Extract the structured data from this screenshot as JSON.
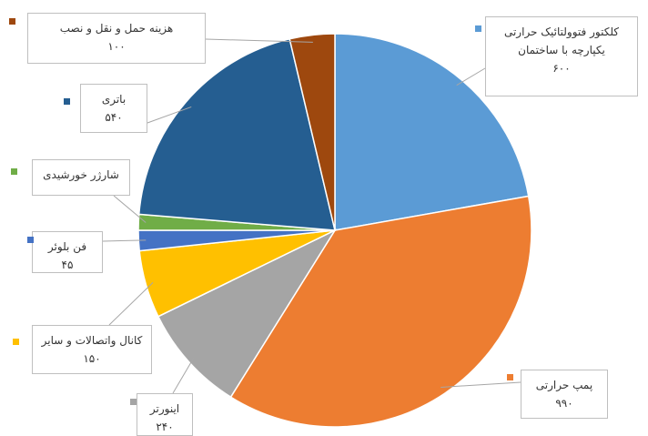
{
  "chart_data": {
    "type": "pie",
    "categories": [
      "کلکتور فتوولتائیک حرارتی یکپارچه با ساختمان",
      "پمپ حرارتی",
      "اینورتر",
      "کانال واتصالات و سایر",
      "فن بلوئر",
      "شارژر خورشیدی",
      "باتری",
      "هزینه حمل و نقل و نصب"
    ],
    "values": [
      600,
      990,
      240,
      150,
      45,
      35,
      540,
      100
    ],
    "value_labels": [
      "۶۰۰",
      "۹۹۰",
      "۲۴۰",
      "۱۵۰",
      "۴۵",
      null,
      "۵۴۰",
      "۱۰۰"
    ],
    "colors": [
      "#5b9bd5",
      "#ed7d31",
      "#a5a5a5",
      "#ffc000",
      "#4472c4",
      "#70ad47",
      "#255e91",
      "#9e480e"
    ]
  }
}
